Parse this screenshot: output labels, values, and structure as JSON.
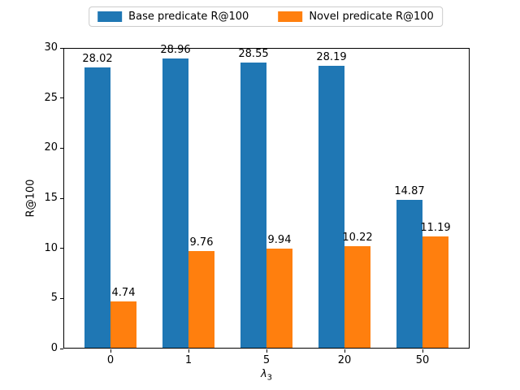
{
  "chart_data": {
    "type": "bar",
    "title": "",
    "categories": [
      "0",
      "1",
      "5",
      "20",
      "50"
    ],
    "series": [
      {
        "name": "Base predicate R@100",
        "color": "#1f77b4",
        "values": [
          28.02,
          28.96,
          28.55,
          28.19,
          14.87
        ]
      },
      {
        "name": "Novel predicate R@100",
        "color": "#ff7f0e",
        "values": [
          4.74,
          9.76,
          9.94,
          10.22,
          11.19
        ]
      }
    ],
    "xlabel": "λ₃",
    "xlabel_main": "λ",
    "xlabel_sub": "3",
    "ylabel": "R@100",
    "ylim": [
      0,
      30
    ],
    "yticks": [
      0,
      5,
      10,
      15,
      20,
      25,
      30
    ],
    "grid": false,
    "show_value_labels": true,
    "value_label_decimals": 2,
    "legend_position": "upper center, above plot"
  }
}
